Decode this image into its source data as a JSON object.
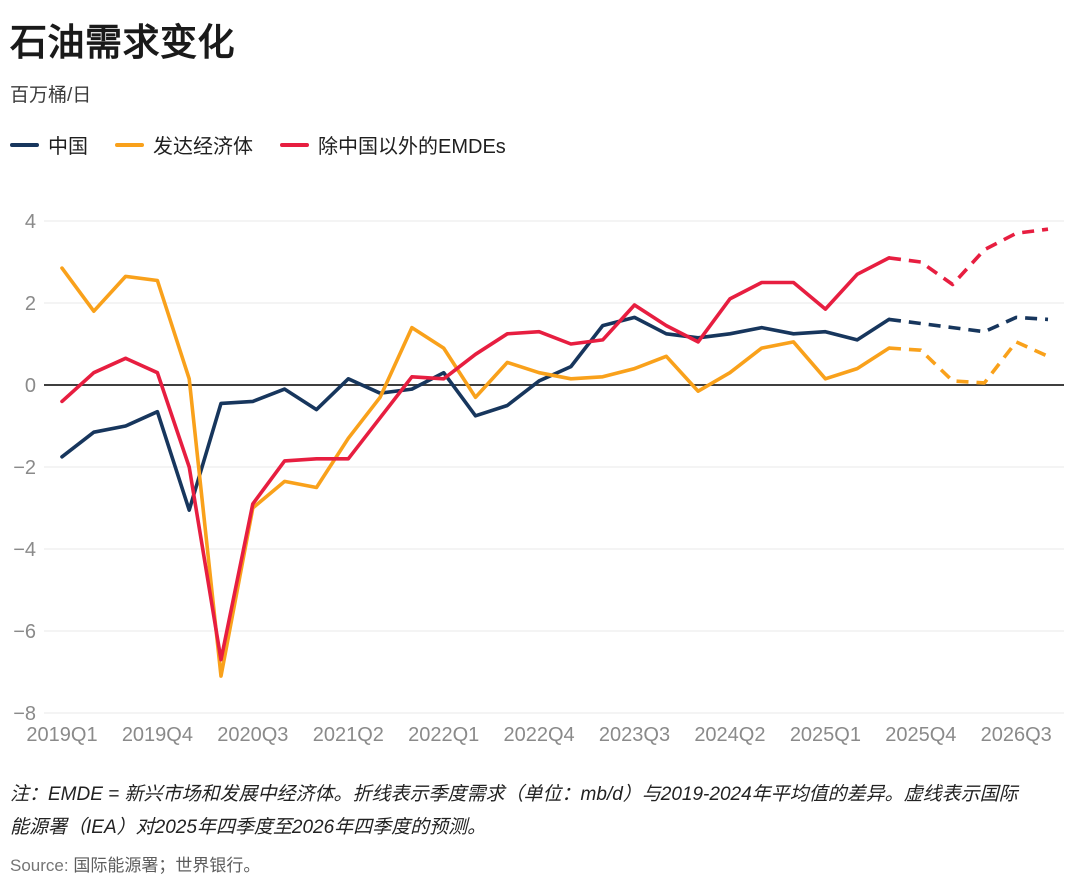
{
  "title": "石油需求变化",
  "subtitle": "百万桶/日",
  "legend": [
    {
      "label": "中国",
      "color": "#17365d"
    },
    {
      "label": "发达经济体",
      "color": "#f9a11b"
    },
    {
      "label": "除中国以外的EMDEs",
      "color": "#e71e40"
    }
  ],
  "note": "注：EMDE = 新兴市场和发展中经济体。折线表示季度需求（单位：mb/d）与2019-2024年平均值的差异。虚线表示国际能源署（IEA）对2025年四季度至2026年四季度的预测。",
  "source": {
    "label": "Source:",
    "text": "国际能源署；世界银行。"
  },
  "colors": {
    "grid": "#e8e8e8",
    "zero_line": "#3f3f3f",
    "axis_text": "#8a8a8a"
  },
  "chart_data": {
    "type": "line",
    "title": "石油需求变化",
    "ylabel": "百万桶/日",
    "ylim": [
      -8,
      4
    ],
    "yticks": [
      4,
      2,
      0,
      -2,
      -4,
      -6,
      -8
    ],
    "ytick_labels": [
      "4",
      "2",
      "0",
      "−2",
      "−4",
      "−6",
      "−8"
    ],
    "grid": true,
    "zero_line": true,
    "legend_position": "top",
    "forecast_start_index": 26,
    "x": [
      "2019Q1",
      "2019Q2",
      "2019Q3",
      "2019Q4",
      "2020Q1",
      "2020Q2",
      "2020Q3",
      "2020Q4",
      "2021Q1",
      "2021Q2",
      "2021Q3",
      "2021Q4",
      "2022Q1",
      "2022Q2",
      "2022Q3",
      "2022Q4",
      "2023Q1",
      "2023Q2",
      "2023Q3",
      "2023Q4",
      "2024Q1",
      "2024Q2",
      "2024Q3",
      "2024Q4",
      "2025Q1",
      "2025Q2",
      "2025Q3",
      "2025Q4",
      "2026Q1",
      "2026Q2",
      "2026Q3",
      "2026Q4"
    ],
    "x_tick_labels": [
      "2019Q1",
      "2019Q4",
      "2020Q3",
      "2021Q2",
      "2022Q1",
      "2022Q4",
      "2023Q3",
      "2024Q2",
      "2025Q1",
      "2025Q4",
      "2026Q3"
    ],
    "x_tick_step": 3,
    "series": [
      {
        "id": "china",
        "name": "中国",
        "color": "#17365d",
        "values": [
          -1.75,
          -1.15,
          -1.0,
          -0.65,
          -3.05,
          -0.45,
          -0.4,
          -0.1,
          -0.6,
          0.15,
          -0.2,
          -0.1,
          0.3,
          -0.75,
          -0.5,
          0.1,
          0.45,
          1.45,
          1.65,
          1.25,
          1.15,
          1.25,
          1.4,
          1.25,
          1.3,
          1.1,
          1.6,
          1.5,
          1.4,
          1.3,
          1.65,
          1.6
        ]
      },
      {
        "id": "developed-economies",
        "name": "发达经济体",
        "color": "#f9a11b",
        "values": [
          2.85,
          1.8,
          2.65,
          2.55,
          0.15,
          -7.1,
          -3.0,
          -2.35,
          -2.5,
          -1.3,
          -0.3,
          1.4,
          0.9,
          -0.3,
          0.55,
          0.3,
          0.15,
          0.2,
          0.4,
          0.7,
          -0.15,
          0.3,
          0.9,
          1.05,
          0.15,
          0.4,
          0.9,
          0.85,
          0.1,
          0.05,
          1.05,
          0.7
        ]
      },
      {
        "id": "emdes-ex-china",
        "name": "除中国以外的EMDEs",
        "color": "#e71e40",
        "values": [
          -0.4,
          0.3,
          0.65,
          0.3,
          -2.0,
          -6.7,
          -2.9,
          -1.85,
          -1.8,
          -1.8,
          -0.8,
          0.2,
          0.15,
          0.75,
          1.25,
          1.3,
          1.0,
          1.1,
          1.95,
          1.45,
          1.05,
          2.1,
          2.5,
          2.5,
          1.85,
          2.7,
          3.1,
          3.0,
          2.45,
          3.3,
          3.7,
          3.8
        ]
      }
    ]
  }
}
